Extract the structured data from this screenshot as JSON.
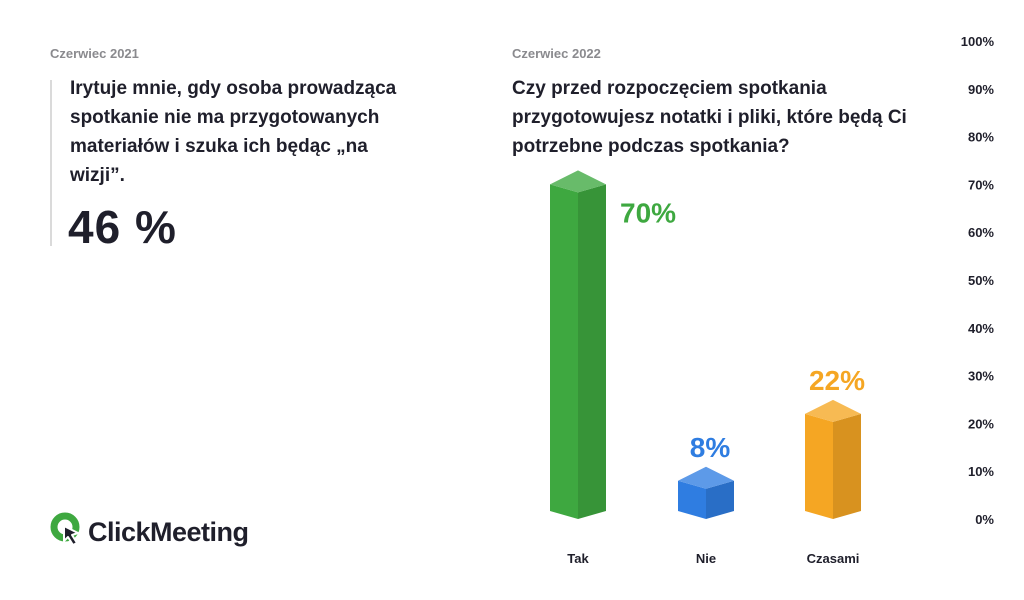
{
  "left_panel": {
    "date": "Czerwiec 2021",
    "quote": "Irytuje mnie, gdy osoba prowadząca spotkanie nie ma przygotowanych materiałów i szuka ich będąc „na wizji”.",
    "percent": "46 %"
  },
  "logo": {
    "text": "ClickMeeting",
    "icon": "clickmeeting-logo-icon",
    "color": "#3ea840"
  },
  "right_panel": {
    "date": "Czerwiec 2022",
    "question": "Czy przed rozpoczęciem spotkania przygotowujesz notatki i pliki, które będą Ci potrzebne podczas spotkania?"
  },
  "chart_data": {
    "type": "bar",
    "categories": [
      "Tak",
      "Nie",
      "Czasami"
    ],
    "values": [
      70,
      8,
      22
    ],
    "value_labels": [
      "70%",
      "8%",
      "22%"
    ],
    "colors": [
      "#3ea840",
      "#2f7de1",
      "#f5a623"
    ],
    "ylim": [
      0,
      100
    ],
    "y_ticks": [
      "0%",
      "10%",
      "20%",
      "30%",
      "40%",
      "50%",
      "60%",
      "70%",
      "80%",
      "90%",
      "100%"
    ],
    "y_axis_position": "right",
    "grid": false,
    "bar_style": "3d"
  }
}
